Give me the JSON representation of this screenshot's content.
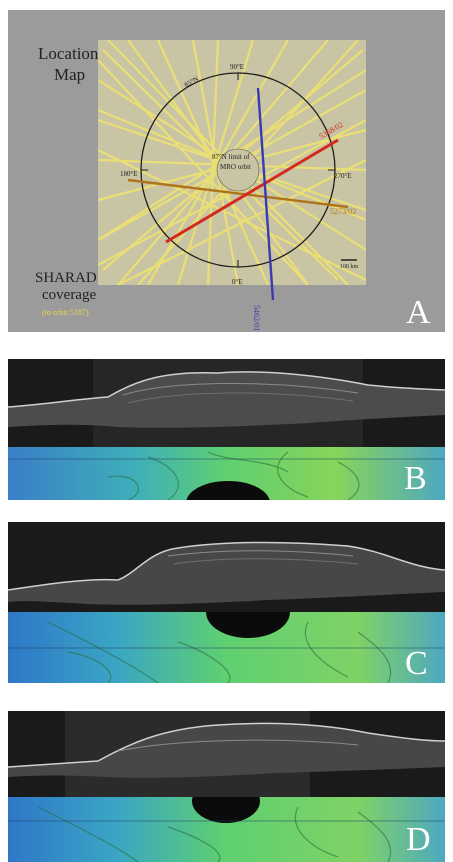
{
  "panelA": {
    "title_line1": "Location",
    "title_line2": "Map",
    "caption_line1": "SHARAD",
    "caption_line2": "coverage",
    "caption_line3": "(to orbit 5187)",
    "limit_line1": "87°N limit of",
    "limit_line2": "MRO orbit",
    "lon_90": "90°E",
    "lon_0": "0°E",
    "lon_180": "180°E",
    "lon_270": "270°E",
    "lat_85": "85°N",
    "track_red": "5368/02",
    "track_orange": "5273/02",
    "track_blue": "5462/01",
    "scale_label": "100 km",
    "letter": "A",
    "colors": {
      "red": "#d42a1e",
      "orange": "#b0731b",
      "blue": "#3a3bb0",
      "yellow": "#f0e060"
    }
  },
  "panelB": {
    "letter": "B"
  },
  "panelC": {
    "letter": "C"
  },
  "panelD": {
    "letter": "D"
  }
}
